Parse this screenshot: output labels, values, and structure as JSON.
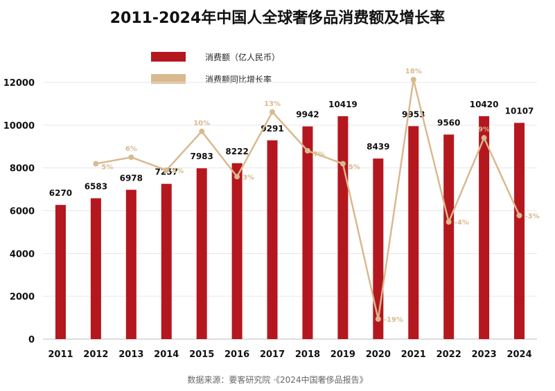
{
  "title": "2011-2024年中国人全球奢侈品消费额及增长率",
  "source": "数据来源：要客研究院 ·《2024中国奢侈品报告》",
  "colors": {
    "bar": "#b5171f",
    "line": "#d9b98f",
    "grid": "#e6e6e6",
    "axis": "#bbbbbb"
  },
  "chart_data": {
    "type": "bar",
    "categories": [
      "2011",
      "2012",
      "2013",
      "2014",
      "2015",
      "2016",
      "2017",
      "2018",
      "2019",
      "2020",
      "2021",
      "2022",
      "2023",
      "2024"
    ],
    "series": [
      {
        "name": "消费额（亿人民币）",
        "type": "bar",
        "values": [
          6270,
          6583,
          6978,
          7257,
          7983,
          8222,
          9291,
          9942,
          10419,
          8439,
          9953,
          9560,
          10420,
          10107
        ]
      },
      {
        "name": "消费额同比增长率",
        "type": "line",
        "values": [
          null,
          5,
          6,
          4,
          10,
          3,
          13,
          7,
          5,
          -19,
          18,
          -4,
          9,
          -3
        ],
        "labels": [
          "",
          "5%",
          "6%",
          "4%",
          "10%",
          "3%",
          "13%",
          "7%",
          "5%",
          "-19%",
          "18%",
          "-4%",
          "9%",
          "-3%"
        ]
      }
    ],
    "ylim": [
      0,
      12000
    ],
    "yticks": [
      "0",
      "2000",
      "4000",
      "6000",
      "8000",
      "10000",
      "12000"
    ],
    "grid": true,
    "legend": "top-left"
  }
}
